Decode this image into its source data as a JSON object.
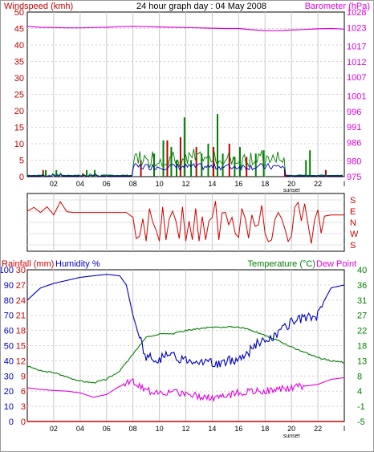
{
  "header": {
    "title": "24 hour graph day : 04 May 2008",
    "left_label": "Windspeed (kmh)",
    "right_label": "Barometer (hPa)"
  },
  "colors": {
    "windspeed": "#c00000",
    "wind_gust": "#008000",
    "wind_avg": "#0000c0",
    "barometer": "#e000e0",
    "direction": "#d00000",
    "humidity": "#0000c0",
    "temperature": "#008000",
    "dewpoint": "#e000e0",
    "rainfall": "#d00000",
    "grid": "#c8c8c8"
  },
  "x_axis": {
    "ticks": [
      "02",
      "04",
      "06",
      "08",
      "10",
      "12",
      "14",
      "16",
      "18",
      "20",
      "22",
      "I"
    ],
    "event_label": "sunset"
  },
  "bottom": {
    "rain_label": "Rainfall (mm)",
    "humidity_label": "Humidity %",
    "temp_label": "Temperature (°C)",
    "dew_label": "Dew Point"
  },
  "chart_data": [
    {
      "type": "line",
      "title": "24 hour graph day : 04 May 2008",
      "ylabel": "Windspeed (kmh)",
      "y2label": "Barometer (hPa)",
      "ylim": [
        0,
        50
      ],
      "y2lim": [
        975,
        1028
      ],
      "yticks": [
        0,
        5,
        10,
        15,
        20,
        25,
        30,
        35,
        40,
        45,
        50
      ],
      "y2ticks": [
        975,
        980,
        986,
        991,
        996,
        1001,
        1007,
        1012,
        1017,
        1023,
        1028
      ],
      "x_hours": [
        0,
        2,
        4,
        6,
        8,
        10,
        12,
        14,
        16,
        18,
        20,
        22,
        24
      ],
      "series": [
        {
          "name": "Barometer (hPa)",
          "axis": "right",
          "hours": [
            0,
            1,
            2,
            3,
            4,
            5,
            6,
            7,
            8,
            9,
            10,
            11,
            12,
            13,
            14,
            15,
            16,
            17,
            18,
            19,
            20,
            21,
            22,
            23,
            24
          ],
          "values": [
            1023.4,
            1023.1,
            1023.0,
            1022.9,
            1022.9,
            1023.0,
            1023.1,
            1023.3,
            1023.4,
            1023.3,
            1023.2,
            1023.1,
            1023.0,
            1022.9,
            1022.8,
            1022.7,
            1022.7,
            1022.3,
            1022.0,
            1022.0,
            1022.2,
            1022.4,
            1022.6,
            1022.7,
            1022.5
          ]
        },
        {
          "name": "Wind peaks (kmh)",
          "axis": "left",
          "hours": [
            1.2,
            1.4,
            2.2,
            4.2,
            4.5,
            5.1,
            8.6,
            9.6,
            10.3,
            10.6,
            10.9,
            11.3,
            11.6,
            11.9,
            12.4,
            12.8,
            13.2,
            13.7,
            14.1,
            14.4,
            14.8,
            15.3,
            15.7,
            16.1,
            16.6,
            17.3,
            17.9,
            19.5,
            21.1,
            21.4,
            22.6
          ],
          "values": [
            2,
            2,
            2,
            1,
            2,
            2,
            5,
            7,
            11,
            11,
            9,
            5,
            12,
            18,
            5,
            9,
            7,
            10,
            9,
            19,
            7,
            10,
            6,
            9,
            6,
            7,
            8,
            2,
            5,
            8,
            2
          ]
        }
      ]
    },
    {
      "type": "line",
      "title": "",
      "ylabel": "Wind direction",
      "ycategories": [
        "S",
        "E",
        "N",
        "W",
        "S"
      ],
      "series": [
        {
          "name": "Direction",
          "hours": [
            0,
            0.5,
            1.0,
            1.5,
            2.0,
            2.5,
            3.0,
            3.5,
            4.0,
            4.5,
            5.0,
            5.5,
            6.0,
            6.5,
            7.0,
            7.5,
            8.0,
            8.5,
            9.0,
            9.5,
            10.0,
            10.5,
            11.0,
            11.5,
            12.0,
            12.5,
            13.0,
            13.5,
            14.0,
            14.5,
            15.0,
            15.5,
            16.0,
            16.5,
            17.0,
            17.5,
            18.0,
            18.5,
            19.0,
            19.5,
            20.0,
            20.5,
            21.0,
            21.5,
            22.0,
            22.5,
            23.0,
            24.0
          ],
          "values": [
            90,
            60,
            100,
            55,
            120,
            15,
            95,
            100,
            100,
            100,
            100,
            100,
            100,
            100,
            100,
            100,
            140,
            290,
            330,
            180,
            330,
            320,
            90,
            310,
            330,
            320,
            330,
            320,
            140,
            320,
            100,
            140,
            300,
            150,
            120,
            200,
            270,
            320,
            100,
            230,
            290,
            20,
            30,
            350,
            80,
            130,
            120,
            120
          ]
        }
      ]
    },
    {
      "type": "line",
      "title": "",
      "ylabel": "Rainfall (mm) / Humidity %",
      "y2label": "Temperature (°C) / Dew Point",
      "humidity_ylim": [
        0,
        100
      ],
      "humidity_ticks": [
        0,
        10,
        20,
        30,
        40,
        50,
        60,
        70,
        80,
        90,
        100
      ],
      "rain_ylim": [
        0,
        30
      ],
      "rain_ticks": [
        0,
        3,
        6,
        9,
        12,
        15,
        18,
        21,
        24,
        27,
        30
      ],
      "temp_ylim": [
        -5,
        40
      ],
      "temp_ticks": [
        -5,
        -1,
        4,
        8,
        13,
        18,
        22,
        27,
        31,
        36,
        40
      ],
      "series": [
        {
          "name": "Humidity %",
          "hours": [
            0,
            1,
            2,
            3,
            4,
            5,
            6,
            7,
            7.5,
            8,
            8.5,
            9,
            10,
            11,
            12,
            13,
            14,
            15,
            16,
            17,
            17.5,
            18,
            19,
            20,
            21,
            22,
            22.5,
            23,
            24
          ],
          "values": [
            80,
            88,
            91,
            93,
            95,
            96,
            97,
            96,
            90,
            70,
            55,
            42,
            42,
            43,
            41,
            41,
            38,
            39,
            42,
            47,
            53,
            52,
            58,
            65,
            68,
            70,
            80,
            88,
            90
          ]
        },
        {
          "name": "Temperature (°C)",
          "hours": [
            0,
            1,
            2,
            3,
            4,
            5,
            6,
            7,
            8,
            9,
            10,
            11,
            12,
            13,
            14,
            15,
            16,
            17,
            18,
            19,
            20,
            21,
            22,
            23,
            24
          ],
          "values": [
            11.5,
            10.0,
            9.5,
            8.2,
            7.0,
            6.5,
            7.5,
            10.0,
            15.0,
            20.0,
            21.0,
            21.0,
            22.0,
            22.5,
            23.0,
            23.0,
            23.0,
            22.0,
            20.5,
            19.0,
            17.0,
            15.5,
            14.0,
            13.0,
            12.5
          ]
        },
        {
          "name": "Dew Point",
          "hours": [
            0,
            1,
            2,
            3,
            4,
            5,
            6,
            7,
            8,
            9,
            10,
            11,
            12,
            13,
            14,
            15,
            16,
            17,
            18,
            19,
            20,
            21,
            22,
            23,
            24
          ],
          "values": [
            5.0,
            4.5,
            4.2,
            4.0,
            3.5,
            2.2,
            3.0,
            5.5,
            7.0,
            4.0,
            4.0,
            3.5,
            3.5,
            2.5,
            2.0,
            2.5,
            3.5,
            4.0,
            4.2,
            4.5,
            5.0,
            5.5,
            6.0,
            7.5,
            8.0
          ]
        },
        {
          "name": "Rainfall (mm)",
          "hours": [
            0,
            24
          ],
          "values": [
            0,
            0
          ]
        }
      ]
    }
  ]
}
